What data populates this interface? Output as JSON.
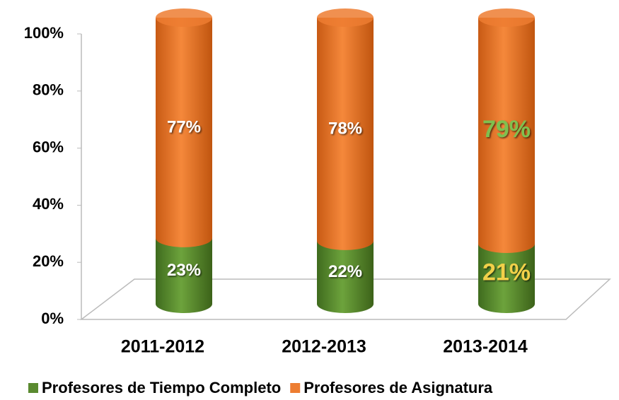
{
  "chart_data": {
    "type": "stacked-bar",
    "categories": [
      "2011-2012",
      "2012-2013",
      "2013-2014"
    ],
    "series": [
      {
        "name": "Profesores de Tiempo Completo",
        "color": "#5a8a30",
        "values": [
          23,
          22,
          21
        ],
        "value_labels": [
          "23%",
          "22%",
          "21%"
        ],
        "label_colors": [
          "#ffffff",
          "#ffffff",
          "#f2d04a"
        ]
      },
      {
        "name": "Profesores de Asignatura",
        "color": "#ed7d31",
        "values": [
          77,
          78,
          79
        ],
        "value_labels": [
          "77%",
          "78%",
          "79%"
        ],
        "label_colors": [
          "#ffffff",
          "#ffffff",
          "#7fc050"
        ]
      }
    ],
    "ylim": [
      0,
      100
    ],
    "yticks": [
      {
        "value": 0,
        "label": "0%"
      },
      {
        "value": 20,
        "label": "20%"
      },
      {
        "value": 40,
        "label": "40%"
      },
      {
        "value": 60,
        "label": "60%"
      },
      {
        "value": 80,
        "label": "80%"
      },
      {
        "value": 100,
        "label": "100%"
      }
    ],
    "legend": "bottom"
  }
}
